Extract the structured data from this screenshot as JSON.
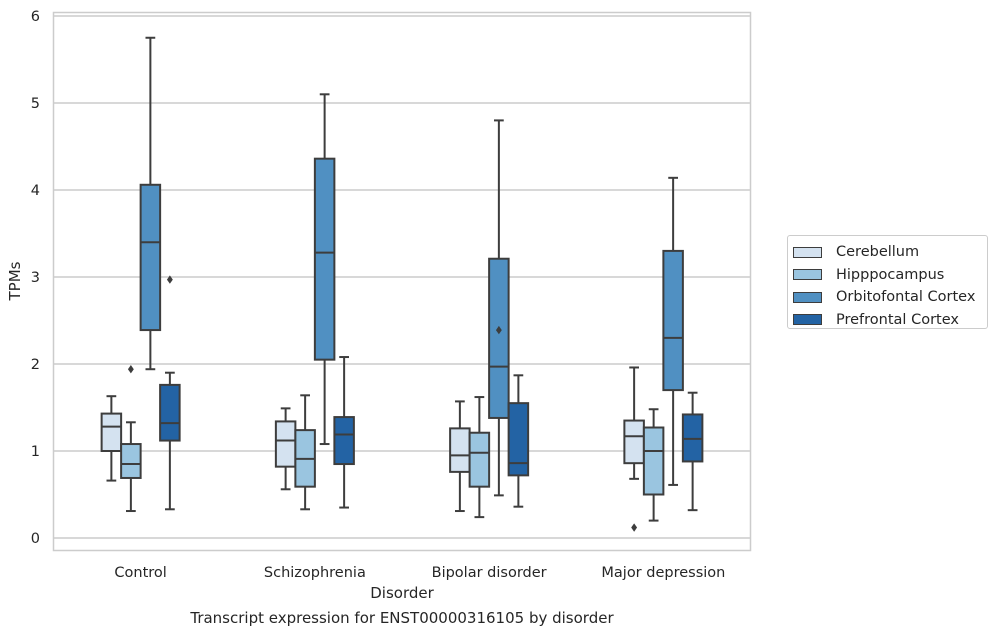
{
  "chart_data": {
    "type": "box",
    "xlabel": "Disorder",
    "ylabel": "TPMs",
    "ylim": [
      -0.15,
      6.05
    ],
    "yticks": [
      0,
      1,
      2,
      3,
      4,
      5,
      6
    ],
    "grid": "horizontal",
    "legend_position": "right",
    "categories": [
      "Control",
      "Schizophrenia",
      "Bipolar disorder",
      "Major depression"
    ],
    "series": [
      {
        "name": "Cerebellum",
        "color": "#d4e2f0",
        "boxes": [
          {
            "whislo": 0.66,
            "q1": 1.0,
            "med": 1.28,
            "q3": 1.43,
            "whishi": 1.63,
            "fliers": []
          },
          {
            "whislo": 0.56,
            "q1": 0.82,
            "med": 1.12,
            "q3": 1.34,
            "whishi": 1.49,
            "fliers": []
          },
          {
            "whislo": 0.31,
            "q1": 0.76,
            "med": 0.95,
            "q3": 1.26,
            "whishi": 1.57,
            "fliers": []
          },
          {
            "whislo": 0.68,
            "q1": 0.86,
            "med": 1.17,
            "q3": 1.35,
            "whishi": 1.96,
            "fliers": [
              0.12
            ]
          }
        ]
      },
      {
        "name": "Hipppocampus",
        "color": "#9ac5e0",
        "boxes": [
          {
            "whislo": 0.31,
            "q1": 0.69,
            "med": 0.85,
            "q3": 1.08,
            "whishi": 1.33,
            "fliers": [
              1.94
            ]
          },
          {
            "whislo": 0.33,
            "q1": 0.59,
            "med": 0.91,
            "q3": 1.24,
            "whishi": 1.64,
            "fliers": []
          },
          {
            "whislo": 0.24,
            "q1": 0.59,
            "med": 0.98,
            "q3": 1.21,
            "whishi": 1.62,
            "fliers": []
          },
          {
            "whislo": 0.2,
            "q1": 0.5,
            "med": 1.0,
            "q3": 1.27,
            "whishi": 1.48,
            "fliers": []
          }
        ]
      },
      {
        "name": "Orbitofontal Cortex",
        "color": "#5090c2",
        "boxes": [
          {
            "whislo": 1.94,
            "q1": 2.39,
            "med": 3.4,
            "q3": 4.06,
            "whishi": 5.75,
            "fliers": []
          },
          {
            "whislo": 1.08,
            "q1": 2.05,
            "med": 3.28,
            "q3": 4.36,
            "whishi": 5.1,
            "fliers": []
          },
          {
            "whislo": 0.49,
            "q1": 1.38,
            "med": 1.97,
            "q3": 3.21,
            "whishi": 4.8,
            "fliers": [
              2.39
            ]
          },
          {
            "whislo": 0.61,
            "q1": 1.7,
            "med": 2.3,
            "q3": 3.3,
            "whishi": 4.14,
            "fliers": []
          }
        ]
      },
      {
        "name": "Prefrontal Cortex",
        "color": "#2363a4",
        "boxes": [
          {
            "whislo": 0.33,
            "q1": 1.12,
            "med": 1.32,
            "q3": 1.76,
            "whishi": 1.9,
            "fliers": [
              2.97
            ]
          },
          {
            "whislo": 0.35,
            "q1": 0.85,
            "med": 1.19,
            "q3": 1.39,
            "whishi": 2.08,
            "fliers": []
          },
          {
            "whislo": 0.36,
            "q1": 0.72,
            "med": 0.86,
            "q3": 1.55,
            "whishi": 1.87,
            "fliers": []
          },
          {
            "whislo": 0.32,
            "q1": 0.88,
            "med": 1.14,
            "q3": 1.42,
            "whishi": 1.67,
            "fliers": []
          }
        ]
      }
    ]
  },
  "caption": "Transcript expression for ENST00000316105 by disorder"
}
